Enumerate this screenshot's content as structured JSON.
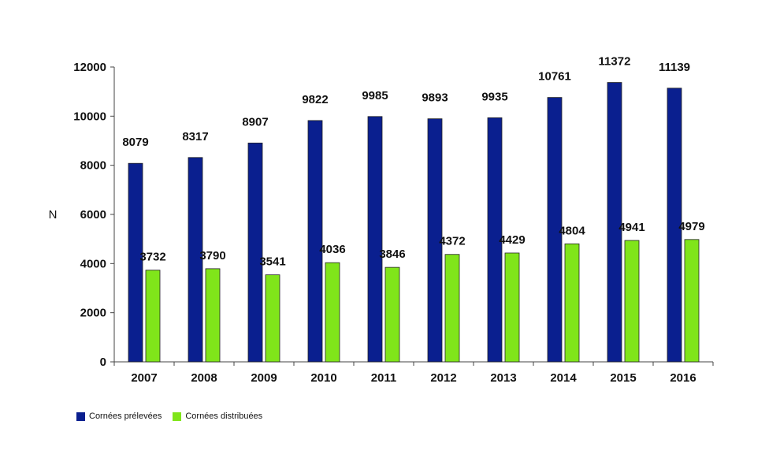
{
  "chart_data": {
    "type": "bar",
    "title": "",
    "xlabel": "",
    "ylabel": "N",
    "ylim": [
      0,
      12000
    ],
    "yticks": [
      0,
      2000,
      4000,
      6000,
      8000,
      10000,
      12000
    ],
    "categories": [
      "2007",
      "2008",
      "2009",
      "2010",
      "2011",
      "2012",
      "2013",
      "2014",
      "2015",
      "2016"
    ],
    "series": [
      {
        "name": "Cornées prélevées",
        "color": "#0a1f8f",
        "values": [
          8079,
          8317,
          8907,
          9822,
          9985,
          9893,
          9935,
          10761,
          11372,
          11139
        ]
      },
      {
        "name": "Cornées distribuées",
        "color": "#80e51a",
        "values": [
          3732,
          3790,
          3541,
          4036,
          3846,
          4372,
          4429,
          4804,
          4941,
          4979
        ]
      }
    ],
    "legend_position": "bottom-left"
  }
}
